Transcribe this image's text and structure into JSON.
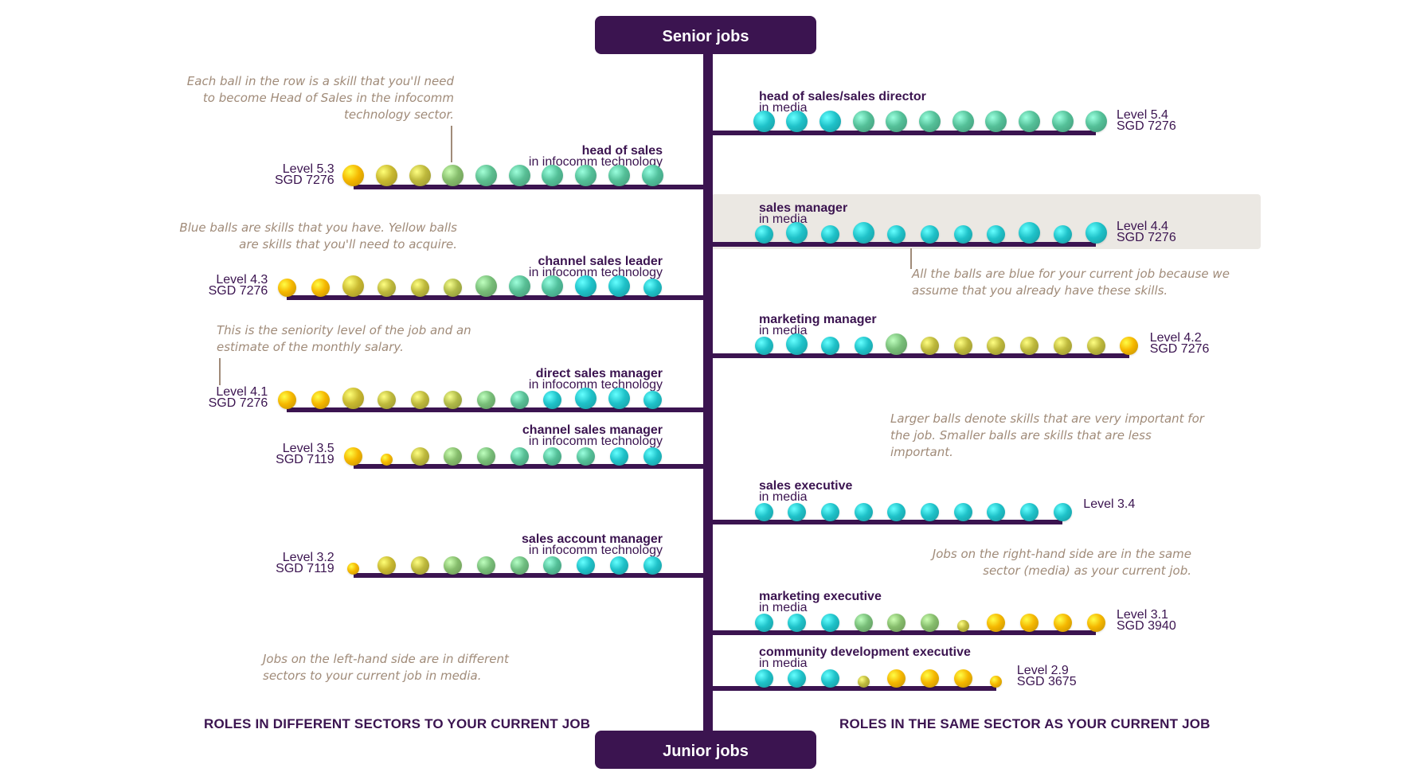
{
  "header": {
    "senior_label": "Senior jobs",
    "junior_label": "Junior jobs"
  },
  "colors": {
    "spine": "#3b1450",
    "blue_skill": "#1fc2c9",
    "yellow_skill": "#f5b700",
    "highlight_background": "#ebe8e3",
    "annotation_text": "#a08b79"
  },
  "legend_note": "ball colour runs from yellow (skills to acquire) through green to blue (skills you have); ball size = importance",
  "left_jobs": [
    {
      "title": "head of sales",
      "sector": "in infocomm technology",
      "level": "Level 5.3",
      "salary": "SGD 7276",
      "balls": [
        {
          "c": 0,
          "s": 2
        },
        {
          "c": 0.2,
          "s": 2
        },
        {
          "c": 0.25,
          "s": 2
        },
        {
          "c": 0.45,
          "s": 2
        },
        {
          "c": 0.65,
          "s": 2
        },
        {
          "c": 0.68,
          "s": 2
        },
        {
          "c": 0.7,
          "s": 2
        },
        {
          "c": 0.7,
          "s": 2
        },
        {
          "c": 0.7,
          "s": 2
        },
        {
          "c": 0.72,
          "s": 2
        }
      ]
    },
    {
      "title": "channel sales leader",
      "sector": "in infocomm technology",
      "level": "Level 4.3",
      "salary": "SGD 7276",
      "balls": [
        {
          "c": 0,
          "s": 1
        },
        {
          "c": 0,
          "s": 1
        },
        {
          "c": 0.2,
          "s": 2
        },
        {
          "c": 0.25,
          "s": 1
        },
        {
          "c": 0.25,
          "s": 1
        },
        {
          "c": 0.3,
          "s": 1
        },
        {
          "c": 0.5,
          "s": 2
        },
        {
          "c": 0.68,
          "s": 2
        },
        {
          "c": 0.72,
          "s": 2
        },
        {
          "c": 1,
          "s": 2
        },
        {
          "c": 1,
          "s": 2
        },
        {
          "c": 1,
          "s": 1
        }
      ]
    },
    {
      "title": "direct sales manager",
      "sector": "in infocomm technology",
      "level": "Level 4.1",
      "salary": "SGD 7276",
      "balls": [
        {
          "c": 0,
          "s": 1
        },
        {
          "c": 0,
          "s": 1
        },
        {
          "c": 0.2,
          "s": 2
        },
        {
          "c": 0.25,
          "s": 1
        },
        {
          "c": 0.25,
          "s": 1
        },
        {
          "c": 0.3,
          "s": 1
        },
        {
          "c": 0.5,
          "s": 1
        },
        {
          "c": 0.68,
          "s": 1
        },
        {
          "c": 1,
          "s": 1
        },
        {
          "c": 1,
          "s": 2
        },
        {
          "c": 1,
          "s": 2
        },
        {
          "c": 1,
          "s": 1
        }
      ]
    },
    {
      "title": "channel sales manager",
      "sector": "in infocomm technology",
      "level": "Level 3.5",
      "salary": "SGD 7119",
      "balls": [
        {
          "c": 0,
          "s": 1
        },
        {
          "c": 0,
          "s": 0
        },
        {
          "c": 0.25,
          "s": 1
        },
        {
          "c": 0.45,
          "s": 1
        },
        {
          "c": 0.5,
          "s": 1
        },
        {
          "c": 0.68,
          "s": 1
        },
        {
          "c": 0.7,
          "s": 1
        },
        {
          "c": 0.7,
          "s": 1
        },
        {
          "c": 1,
          "s": 1
        },
        {
          "c": 1,
          "s": 1
        }
      ]
    },
    {
      "title": "sales account manager",
      "sector": "in infocomm technology",
      "level": "Level 3.2",
      "salary": "SGD 7119",
      "balls": [
        {
          "c": 0,
          "s": 0
        },
        {
          "c": 0.2,
          "s": 1
        },
        {
          "c": 0.25,
          "s": 1
        },
        {
          "c": 0.45,
          "s": 1
        },
        {
          "c": 0.5,
          "s": 1
        },
        {
          "c": 0.55,
          "s": 1
        },
        {
          "c": 0.7,
          "s": 1
        },
        {
          "c": 1,
          "s": 1
        },
        {
          "c": 1,
          "s": 1
        },
        {
          "c": 1,
          "s": 1
        }
      ]
    }
  ],
  "right_jobs": [
    {
      "title": "head of sales/sales director",
      "sector": "in media",
      "level": "Level 5.4",
      "salary": "SGD 7276",
      "balls": [
        {
          "c": 1,
          "s": 2
        },
        {
          "c": 1,
          "s": 2
        },
        {
          "c": 1,
          "s": 2
        },
        {
          "c": 0.7,
          "s": 2
        },
        {
          "c": 0.7,
          "s": 2
        },
        {
          "c": 0.7,
          "s": 2
        },
        {
          "c": 0.7,
          "s": 2
        },
        {
          "c": 0.7,
          "s": 2
        },
        {
          "c": 0.7,
          "s": 2
        },
        {
          "c": 0.7,
          "s": 2
        },
        {
          "c": 0.7,
          "s": 2
        }
      ]
    },
    {
      "title": "sales manager",
      "sector": "in media",
      "level": "Level 4.4",
      "salary": "SGD 7276",
      "balls": [
        {
          "c": 1,
          "s": 1
        },
        {
          "c": 1,
          "s": 2
        },
        {
          "c": 1,
          "s": 1
        },
        {
          "c": 1,
          "s": 2
        },
        {
          "c": 1,
          "s": 1
        },
        {
          "c": 1,
          "s": 1
        },
        {
          "c": 1,
          "s": 1
        },
        {
          "c": 1,
          "s": 1
        },
        {
          "c": 1,
          "s": 2
        },
        {
          "c": 1,
          "s": 1
        },
        {
          "c": 1,
          "s": 2
        }
      ]
    },
    {
      "title": "marketing manager",
      "sector": "in media",
      "level": "Level 4.2",
      "salary": "SGD 7276",
      "balls": [
        {
          "c": 1,
          "s": 1
        },
        {
          "c": 1,
          "s": 2
        },
        {
          "c": 1,
          "s": 1
        },
        {
          "c": 1,
          "s": 1
        },
        {
          "c": 0.5,
          "s": 2
        },
        {
          "c": 0.25,
          "s": 1
        },
        {
          "c": 0.25,
          "s": 1
        },
        {
          "c": 0.25,
          "s": 1
        },
        {
          "c": 0.25,
          "s": 1
        },
        {
          "c": 0.25,
          "s": 1
        },
        {
          "c": 0.25,
          "s": 1
        },
        {
          "c": 0,
          "s": 1
        }
      ]
    },
    {
      "title": "sales executive",
      "sector": "in media",
      "level": "Level 3.4",
      "salary": "",
      "balls": [
        {
          "c": 1,
          "s": 1
        },
        {
          "c": 1,
          "s": 1
        },
        {
          "c": 1,
          "s": 1
        },
        {
          "c": 1,
          "s": 1
        },
        {
          "c": 1,
          "s": 1
        },
        {
          "c": 1,
          "s": 1
        },
        {
          "c": 1,
          "s": 1
        },
        {
          "c": 1,
          "s": 1
        },
        {
          "c": 1,
          "s": 1
        },
        {
          "c": 1,
          "s": 1
        }
      ]
    },
    {
      "title": "marketing executive",
      "sector": "in media",
      "level": "Level 3.1",
      "salary": "SGD 3940",
      "balls": [
        {
          "c": 1,
          "s": 1
        },
        {
          "c": 1,
          "s": 1
        },
        {
          "c": 1,
          "s": 1
        },
        {
          "c": 0.5,
          "s": 1
        },
        {
          "c": 0.45,
          "s": 1
        },
        {
          "c": 0.45,
          "s": 1
        },
        {
          "c": 0.25,
          "s": 0
        },
        {
          "c": 0,
          "s": 1
        },
        {
          "c": 0,
          "s": 1
        },
        {
          "c": 0,
          "s": 1
        },
        {
          "c": 0,
          "s": 1
        }
      ]
    },
    {
      "title": "community development executive",
      "sector": "in media",
      "level": "Level 2.9",
      "salary": "SGD 3675",
      "balls": [
        {
          "c": 1,
          "s": 1
        },
        {
          "c": 1,
          "s": 1
        },
        {
          "c": 1,
          "s": 1
        },
        {
          "c": 0.25,
          "s": 0
        },
        {
          "c": 0,
          "s": 1
        },
        {
          "c": 0,
          "s": 1
        },
        {
          "c": 0,
          "s": 1
        },
        {
          "c": 0,
          "s": 0
        }
      ]
    }
  ],
  "notes": {
    "each_ball": "Each ball in the row is a skill that you'll need to become Head of Sales in the infocomm technology sector.",
    "blue_yellow": "Blue balls are skills that you have. Yellow balls are skills that you'll need to acquire.",
    "seniority": "This is the seniority level of the job and an estimate of the monthly salary.",
    "left_side": "Jobs on the left-hand side are in different sectors to your current job in media.",
    "all_blue": "All the balls are blue for your current job because we assume that you already have these skills.",
    "larger_balls": "Larger balls denote skills that are very important for the job. Smaller balls are skills that are less important.",
    "right_side": "Jobs on the right-hand side are in the same sector (media) as your current job."
  },
  "footer": {
    "left": "ROLES IN DIFFERENT SECTORS TO YOUR CURRENT JOB",
    "right": "ROLES IN THE SAME SECTOR AS YOUR CURRENT JOB"
  }
}
